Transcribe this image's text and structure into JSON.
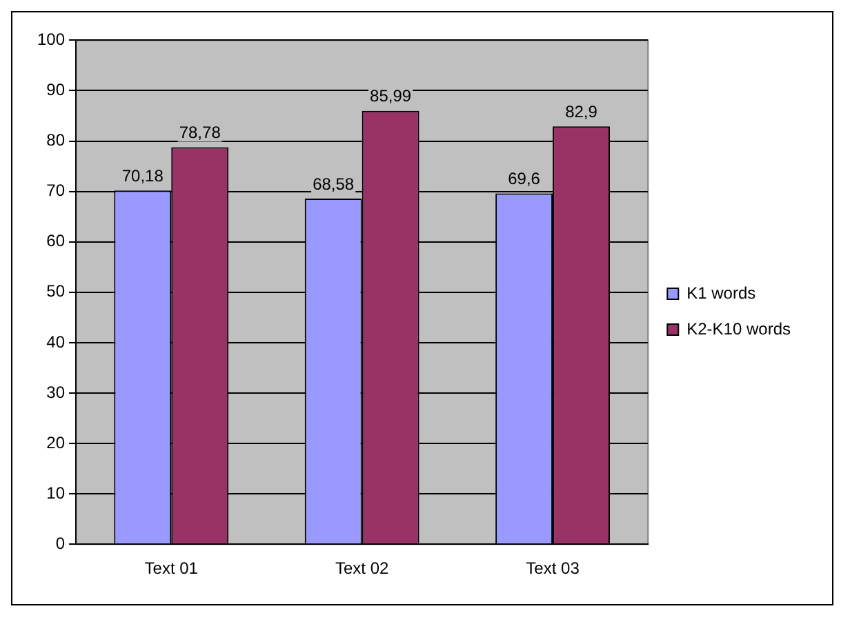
{
  "chart_data": {
    "type": "bar",
    "categories": [
      "Text 01",
      "Text 02",
      "Text 03"
    ],
    "series": [
      {
        "name": "K1 words",
        "color": "#9999ff",
        "values": [
          70.18,
          68.58,
          69.6
        ],
        "value_labels": [
          "70,18",
          "68,58",
          "69,6"
        ]
      },
      {
        "name": "K2-K10 words",
        "color": "#993366",
        "values": [
          78.78,
          85.99,
          82.9
        ],
        "value_labels": [
          "78,78",
          "85,99",
          "82,9"
        ]
      }
    ],
    "ylim": [
      0,
      100
    ],
    "yticks": [
      0,
      10,
      20,
      30,
      40,
      50,
      60,
      70,
      80,
      90,
      100
    ],
    "grid": "y",
    "legend": "right"
  }
}
